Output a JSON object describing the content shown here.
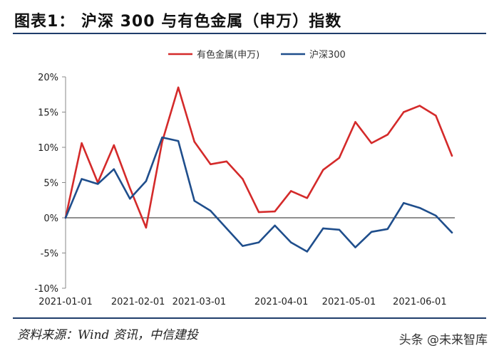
{
  "header": {
    "title": "图表1：  沪深 300 与有色金属（申万）指数"
  },
  "footer": {
    "source": "资料来源：Wind 资讯，中信建投",
    "watermark": "头条 @未来智库"
  },
  "colors": {
    "series1": "#d42a2a",
    "series2": "#1f4e8c",
    "axis": "#888888"
  },
  "chart_data": {
    "type": "line",
    "title": "",
    "xlabel": "",
    "ylabel": "",
    "ylim": [
      -10,
      20
    ],
    "yticks": [
      -10,
      -5,
      0,
      5,
      10,
      15,
      20
    ],
    "ytick_labels": [
      "-10%",
      "-5%",
      "0%",
      "5%",
      "10%",
      "15%",
      "20%"
    ],
    "xticks": [
      {
        "label": "2021-01-01",
        "index": 0
      },
      {
        "label": "2021-02-01",
        "index": 4.5
      },
      {
        "label": "2021-03-01",
        "index": 8.3
      },
      {
        "label": "2021-04-01",
        "index": 13.4
      },
      {
        "label": "2021-05-01",
        "index": 17.6
      },
      {
        "label": "2021-06-01",
        "index": 22
      }
    ],
    "legend": "top-center",
    "series": [
      {
        "name": "有色金属(申万)",
        "values": [
          0,
          10.6,
          5.0,
          10.3,
          4.2,
          -1.4,
          10.8,
          18.5,
          10.8,
          7.6,
          8.0,
          5.5,
          0.8,
          0.9,
          3.8,
          2.8,
          6.8,
          8.5,
          13.6,
          10.6,
          11.8,
          15.0,
          15.9,
          14.5,
          8.8
        ]
      },
      {
        "name": "沪深300",
        "values": [
          0,
          5.5,
          4.8,
          6.9,
          2.7,
          5.2,
          11.4,
          10.9,
          2.4,
          1.0,
          -1.5,
          -4.0,
          -3.5,
          -1.1,
          -3.5,
          -4.8,
          -1.5,
          -1.7,
          -4.2,
          -2.0,
          -1.6,
          2.1,
          1.4,
          0.3,
          -2.1
        ]
      }
    ]
  }
}
